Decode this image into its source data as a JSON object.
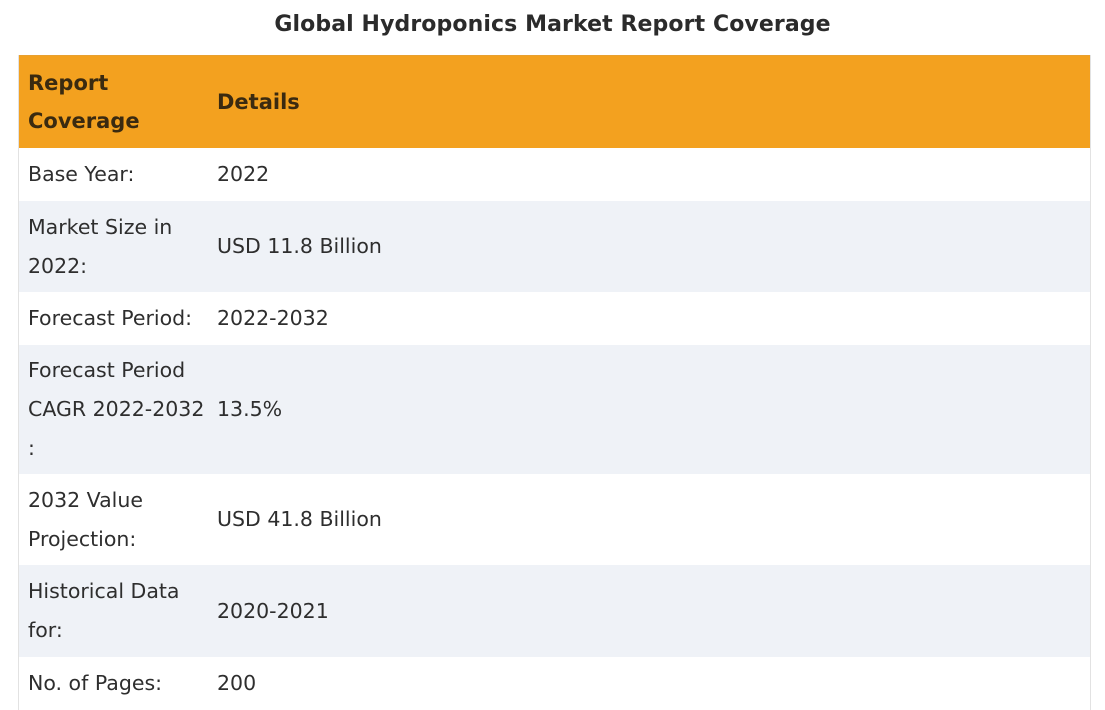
{
  "title": "Global Hydroponics Market Report Coverage",
  "table": {
    "header": {
      "col1": "Report Coverage",
      "col2": "Details"
    },
    "rows": [
      {
        "label": "Base Year:",
        "value": "2022"
      },
      {
        "label": "Market Size in 2022:",
        "value": "USD 11.8 Billion"
      },
      {
        "label": "Forecast Period:",
        "value": "2022-2032"
      },
      {
        "label": "Forecast Period CAGR 2022-2032 :",
        "value": "13.5%"
      },
      {
        "label": "2032 Value Projection:",
        "value": "USD 41.8 Billion"
      },
      {
        "label": "Historical Data for:",
        "value": "2020-2021"
      },
      {
        "label": "No. of Pages:",
        "value": "200"
      }
    ]
  },
  "colors": {
    "header_bg": "#f3a11f",
    "stripe_bg": "#eff2f7",
    "row_bg": "#ffffff"
  }
}
